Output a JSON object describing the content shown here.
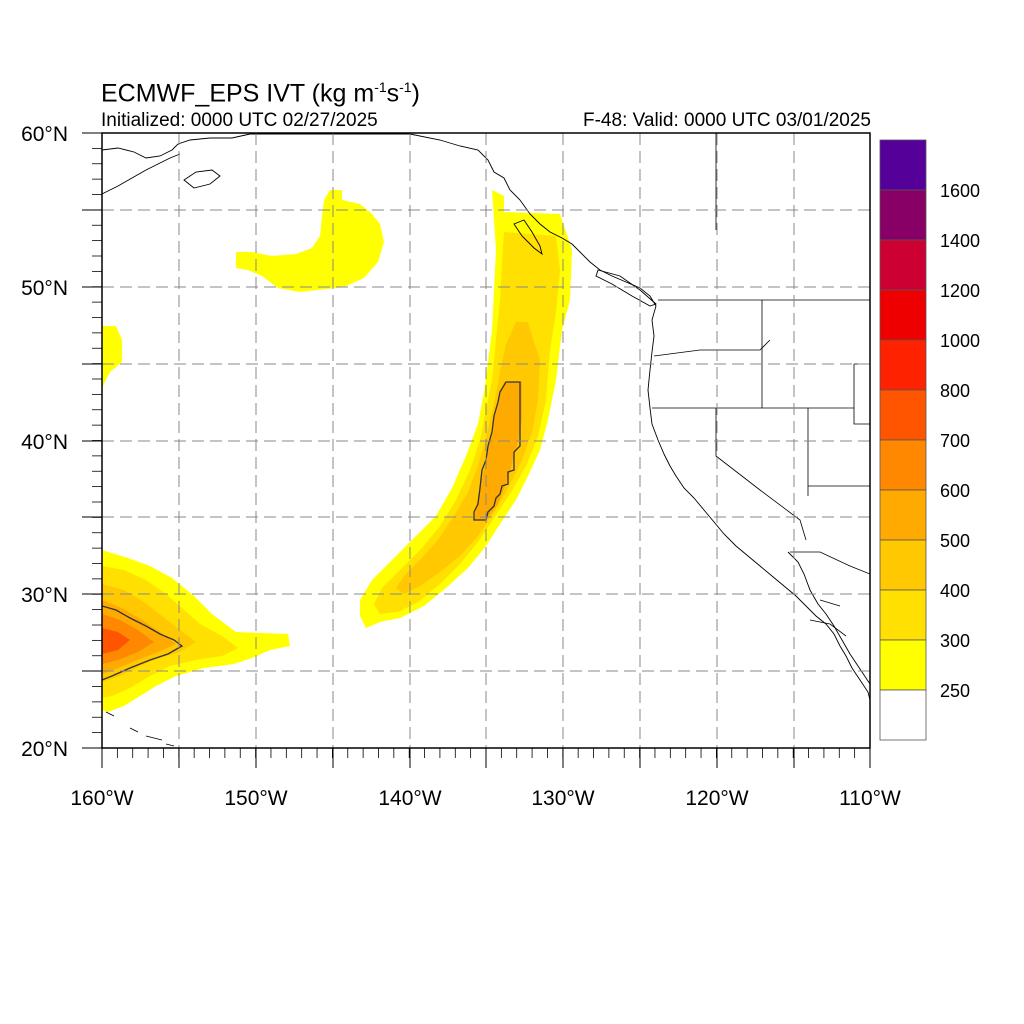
{
  "title": {
    "main": "ECMWF_EPS IVT (kg m",
    "sup1": "-1",
    "mid": "s",
    "sup2": "-1",
    "end": ")"
  },
  "initialized": "Initialized: 0000 UTC 02/27/2025",
  "valid": "F-48: Valid: 0000 UTC 03/01/2025",
  "lat_labels": [
    "60°N",
    "50°N",
    "40°N",
    "30°N",
    "20°N"
  ],
  "lon_labels": [
    "160°W",
    "150°W",
    "140°W",
    "130°W",
    "120°W",
    "110°W"
  ],
  "colorbar": {
    "labels": [
      "250",
      "300",
      "400",
      "500",
      "600",
      "700",
      "800",
      "1000",
      "1200",
      "1400",
      "1600"
    ],
    "colors": [
      "#ffffff",
      "#ffff00",
      "#ffe000",
      "#ffc800",
      "#ffaa00",
      "#ff8800",
      "#ff5500",
      "#ff2200",
      "#ee0000",
      "#cc0033",
      "#880066",
      "#550099"
    ]
  },
  "map_extent": {
    "lon_min": -160,
    "lon_max": -110,
    "lat_min": 20,
    "lat_max": 60
  }
}
